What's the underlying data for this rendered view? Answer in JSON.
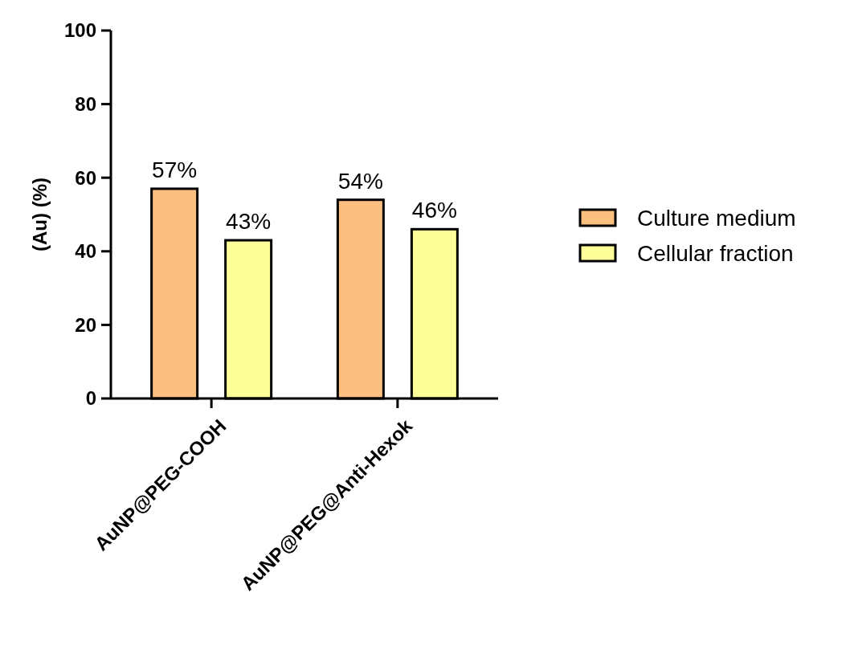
{
  "chart_data": {
    "type": "bar",
    "ylabel": "(Au) (%)",
    "categories": [
      "AuNP@PEG-COOH",
      "AuNP@PEG@Anti-Hexok"
    ],
    "series": [
      {
        "name": "Culture medium",
        "color": "#fbbf80",
        "values": [
          57,
          54
        ],
        "value_labels": [
          "57%",
          "54%"
        ]
      },
      {
        "name": "Cellular fraction",
        "color": "#ffff99",
        "values": [
          43,
          46
        ],
        "value_labels": [
          "43%",
          "46%"
        ]
      }
    ],
    "ylim": [
      0,
      100
    ],
    "yticks": [
      0,
      20,
      40,
      60,
      80,
      100
    ],
    "legend": "right",
    "grid": false
  }
}
